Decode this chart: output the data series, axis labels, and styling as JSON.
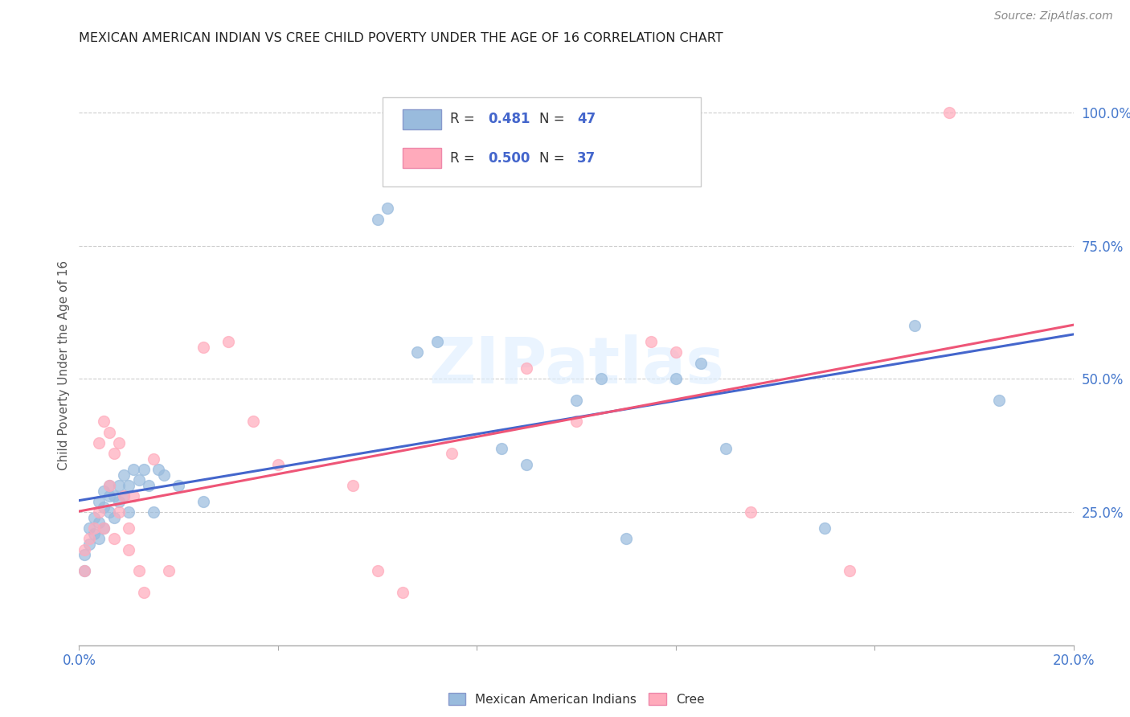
{
  "title": "MEXICAN AMERICAN INDIAN VS CREE CHILD POVERTY UNDER THE AGE OF 16 CORRELATION CHART",
  "source": "Source: ZipAtlas.com",
  "ylabel": "Child Poverty Under the Age of 16",
  "xlim": [
    0.0,
    0.2
  ],
  "ylim": [
    0.0,
    1.05
  ],
  "legend1_r": "0.481",
  "legend1_n": "47",
  "legend2_r": "0.500",
  "legend2_n": "37",
  "blue_color": "#99BBDD",
  "pink_color": "#FFAABB",
  "blue_line_color": "#4466CC",
  "pink_line_color": "#EE5577",
  "background_color": "#FFFFFF",
  "grid_color": "#CCCCCC",
  "blue_x": [
    0.001,
    0.001,
    0.002,
    0.002,
    0.003,
    0.003,
    0.004,
    0.004,
    0.004,
    0.005,
    0.005,
    0.005,
    0.006,
    0.006,
    0.006,
    0.007,
    0.007,
    0.008,
    0.008,
    0.009,
    0.009,
    0.01,
    0.01,
    0.011,
    0.012,
    0.013,
    0.014,
    0.015,
    0.016,
    0.017,
    0.02,
    0.025,
    0.06,
    0.062,
    0.068,
    0.072,
    0.085,
    0.09,
    0.1,
    0.105,
    0.11,
    0.12,
    0.125,
    0.13,
    0.15,
    0.168,
    0.185
  ],
  "blue_y": [
    0.14,
    0.17,
    0.19,
    0.22,
    0.21,
    0.24,
    0.2,
    0.23,
    0.27,
    0.22,
    0.26,
    0.29,
    0.25,
    0.28,
    0.3,
    0.24,
    0.28,
    0.27,
    0.3,
    0.28,
    0.32,
    0.25,
    0.3,
    0.33,
    0.31,
    0.33,
    0.3,
    0.25,
    0.33,
    0.32,
    0.3,
    0.27,
    0.8,
    0.82,
    0.55,
    0.57,
    0.37,
    0.34,
    0.46,
    0.5,
    0.2,
    0.5,
    0.53,
    0.37,
    0.22,
    0.6,
    0.46
  ],
  "pink_x": [
    0.001,
    0.001,
    0.002,
    0.003,
    0.004,
    0.004,
    0.005,
    0.005,
    0.006,
    0.006,
    0.007,
    0.007,
    0.008,
    0.008,
    0.009,
    0.01,
    0.01,
    0.011,
    0.012,
    0.013,
    0.015,
    0.018,
    0.025,
    0.03,
    0.035,
    0.04,
    0.055,
    0.06,
    0.065,
    0.075,
    0.09,
    0.1,
    0.115,
    0.12,
    0.135,
    0.155,
    0.175
  ],
  "pink_y": [
    0.14,
    0.18,
    0.2,
    0.22,
    0.25,
    0.38,
    0.22,
    0.42,
    0.3,
    0.4,
    0.2,
    0.36,
    0.38,
    0.25,
    0.28,
    0.22,
    0.18,
    0.28,
    0.14,
    0.1,
    0.35,
    0.14,
    0.56,
    0.57,
    0.42,
    0.34,
    0.3,
    0.14,
    0.1,
    0.36,
    0.52,
    0.42,
    0.57,
    0.55,
    0.25,
    0.14,
    1.0
  ]
}
